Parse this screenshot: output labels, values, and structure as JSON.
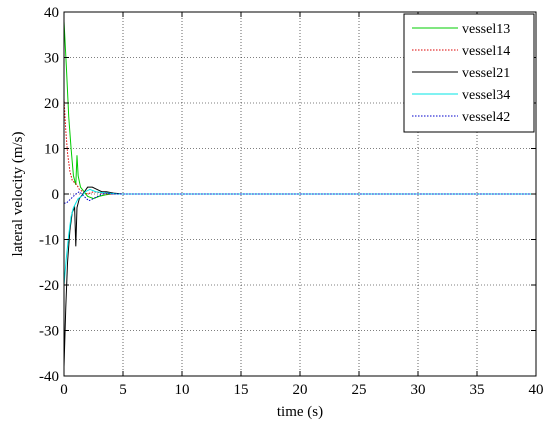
{
  "chart_data": {
    "type": "line",
    "title": "",
    "xlabel": "time (s)",
    "ylabel": "lateral velocity (m/s)",
    "xlim": [
      0,
      40
    ],
    "ylim": [
      -40,
      40
    ],
    "xticks": [
      0,
      5,
      10,
      15,
      20,
      25,
      30,
      35,
      40
    ],
    "yticks": [
      -40,
      -30,
      -20,
      -10,
      0,
      10,
      20,
      30,
      40
    ],
    "xtick_labels": [
      "0",
      "5",
      "10",
      "15",
      "20",
      "25",
      "30",
      "35",
      "40"
    ],
    "ytick_labels": [
      "-40",
      "-30",
      "-20",
      "-10",
      "0",
      "10",
      "20",
      "30",
      "40"
    ],
    "grid": true,
    "legend_position": "top-right",
    "series": [
      {
        "name": "vessel13",
        "color": "#00cc00",
        "dash": "solid",
        "x": [
          0,
          0.2,
          0.4,
          0.6,
          0.8,
          1.0,
          1.1,
          1.2,
          1.4,
          1.7,
          2.0,
          2.5,
          3.0,
          3.5,
          4.0,
          5.0,
          40
        ],
        "y": [
          38,
          28,
          17,
          10,
          4,
          2,
          8.5,
          4,
          1.5,
          0.5,
          -0.5,
          -1,
          -0.5,
          -0.2,
          0,
          0,
          0
        ]
      },
      {
        "name": "vessel14",
        "color": "#dd0000",
        "dash": "dotted",
        "x": [
          0,
          0.15,
          0.3,
          0.5,
          0.7,
          0.9,
          1.1,
          1.3,
          1.6,
          2.0,
          2.5,
          3.0,
          3.5,
          4.0,
          5.0,
          40
        ],
        "y": [
          21,
          14,
          9,
          5,
          3,
          2.5,
          2,
          1,
          0.5,
          0,
          0.5,
          0.3,
          0,
          0,
          0,
          0
        ]
      },
      {
        "name": "vessel21",
        "color": "#000000",
        "dash": "solid",
        "x": [
          0,
          0.15,
          0.3,
          0.5,
          0.7,
          0.9,
          1.0,
          1.1,
          1.3,
          1.6,
          2.0,
          2.4,
          2.8,
          3.2,
          3.6,
          4.2,
          5.0,
          40
        ],
        "y": [
          -38,
          -25,
          -15,
          -8,
          -4,
          -3,
          -11.5,
          -3,
          -1,
          0,
          1.5,
          1.5,
          1,
          0.5,
          0.5,
          0.2,
          0,
          0
        ]
      },
      {
        "name": "vessel34",
        "color": "#00e5e5",
        "dash": "solid",
        "x": [
          0,
          0.2,
          0.4,
          0.6,
          0.8,
          1.0,
          1.2,
          1.5,
          1.8,
          2.2,
          2.7,
          3.2,
          3.8,
          4.5,
          5.0,
          40
        ],
        "y": [
          -20,
          -14,
          -9,
          -5,
          -3,
          -2,
          -1,
          -0.5,
          0.5,
          1,
          0.5,
          0.3,
          0.2,
          0,
          0,
          0
        ]
      },
      {
        "name": "vessel42",
        "color": "#0000cc",
        "dash": "dotted",
        "x": [
          0,
          0.2,
          0.4,
          0.6,
          0.8,
          1.0,
          1.3,
          1.7,
          2.1,
          2.5,
          3.0,
          3.5,
          4.0,
          5.0,
          40
        ],
        "y": [
          -2,
          -2,
          -1.5,
          -1,
          -0.5,
          0,
          0.5,
          -0.5,
          -1.5,
          -1,
          -0.3,
          0.2,
          0,
          0,
          0
        ]
      }
    ]
  }
}
